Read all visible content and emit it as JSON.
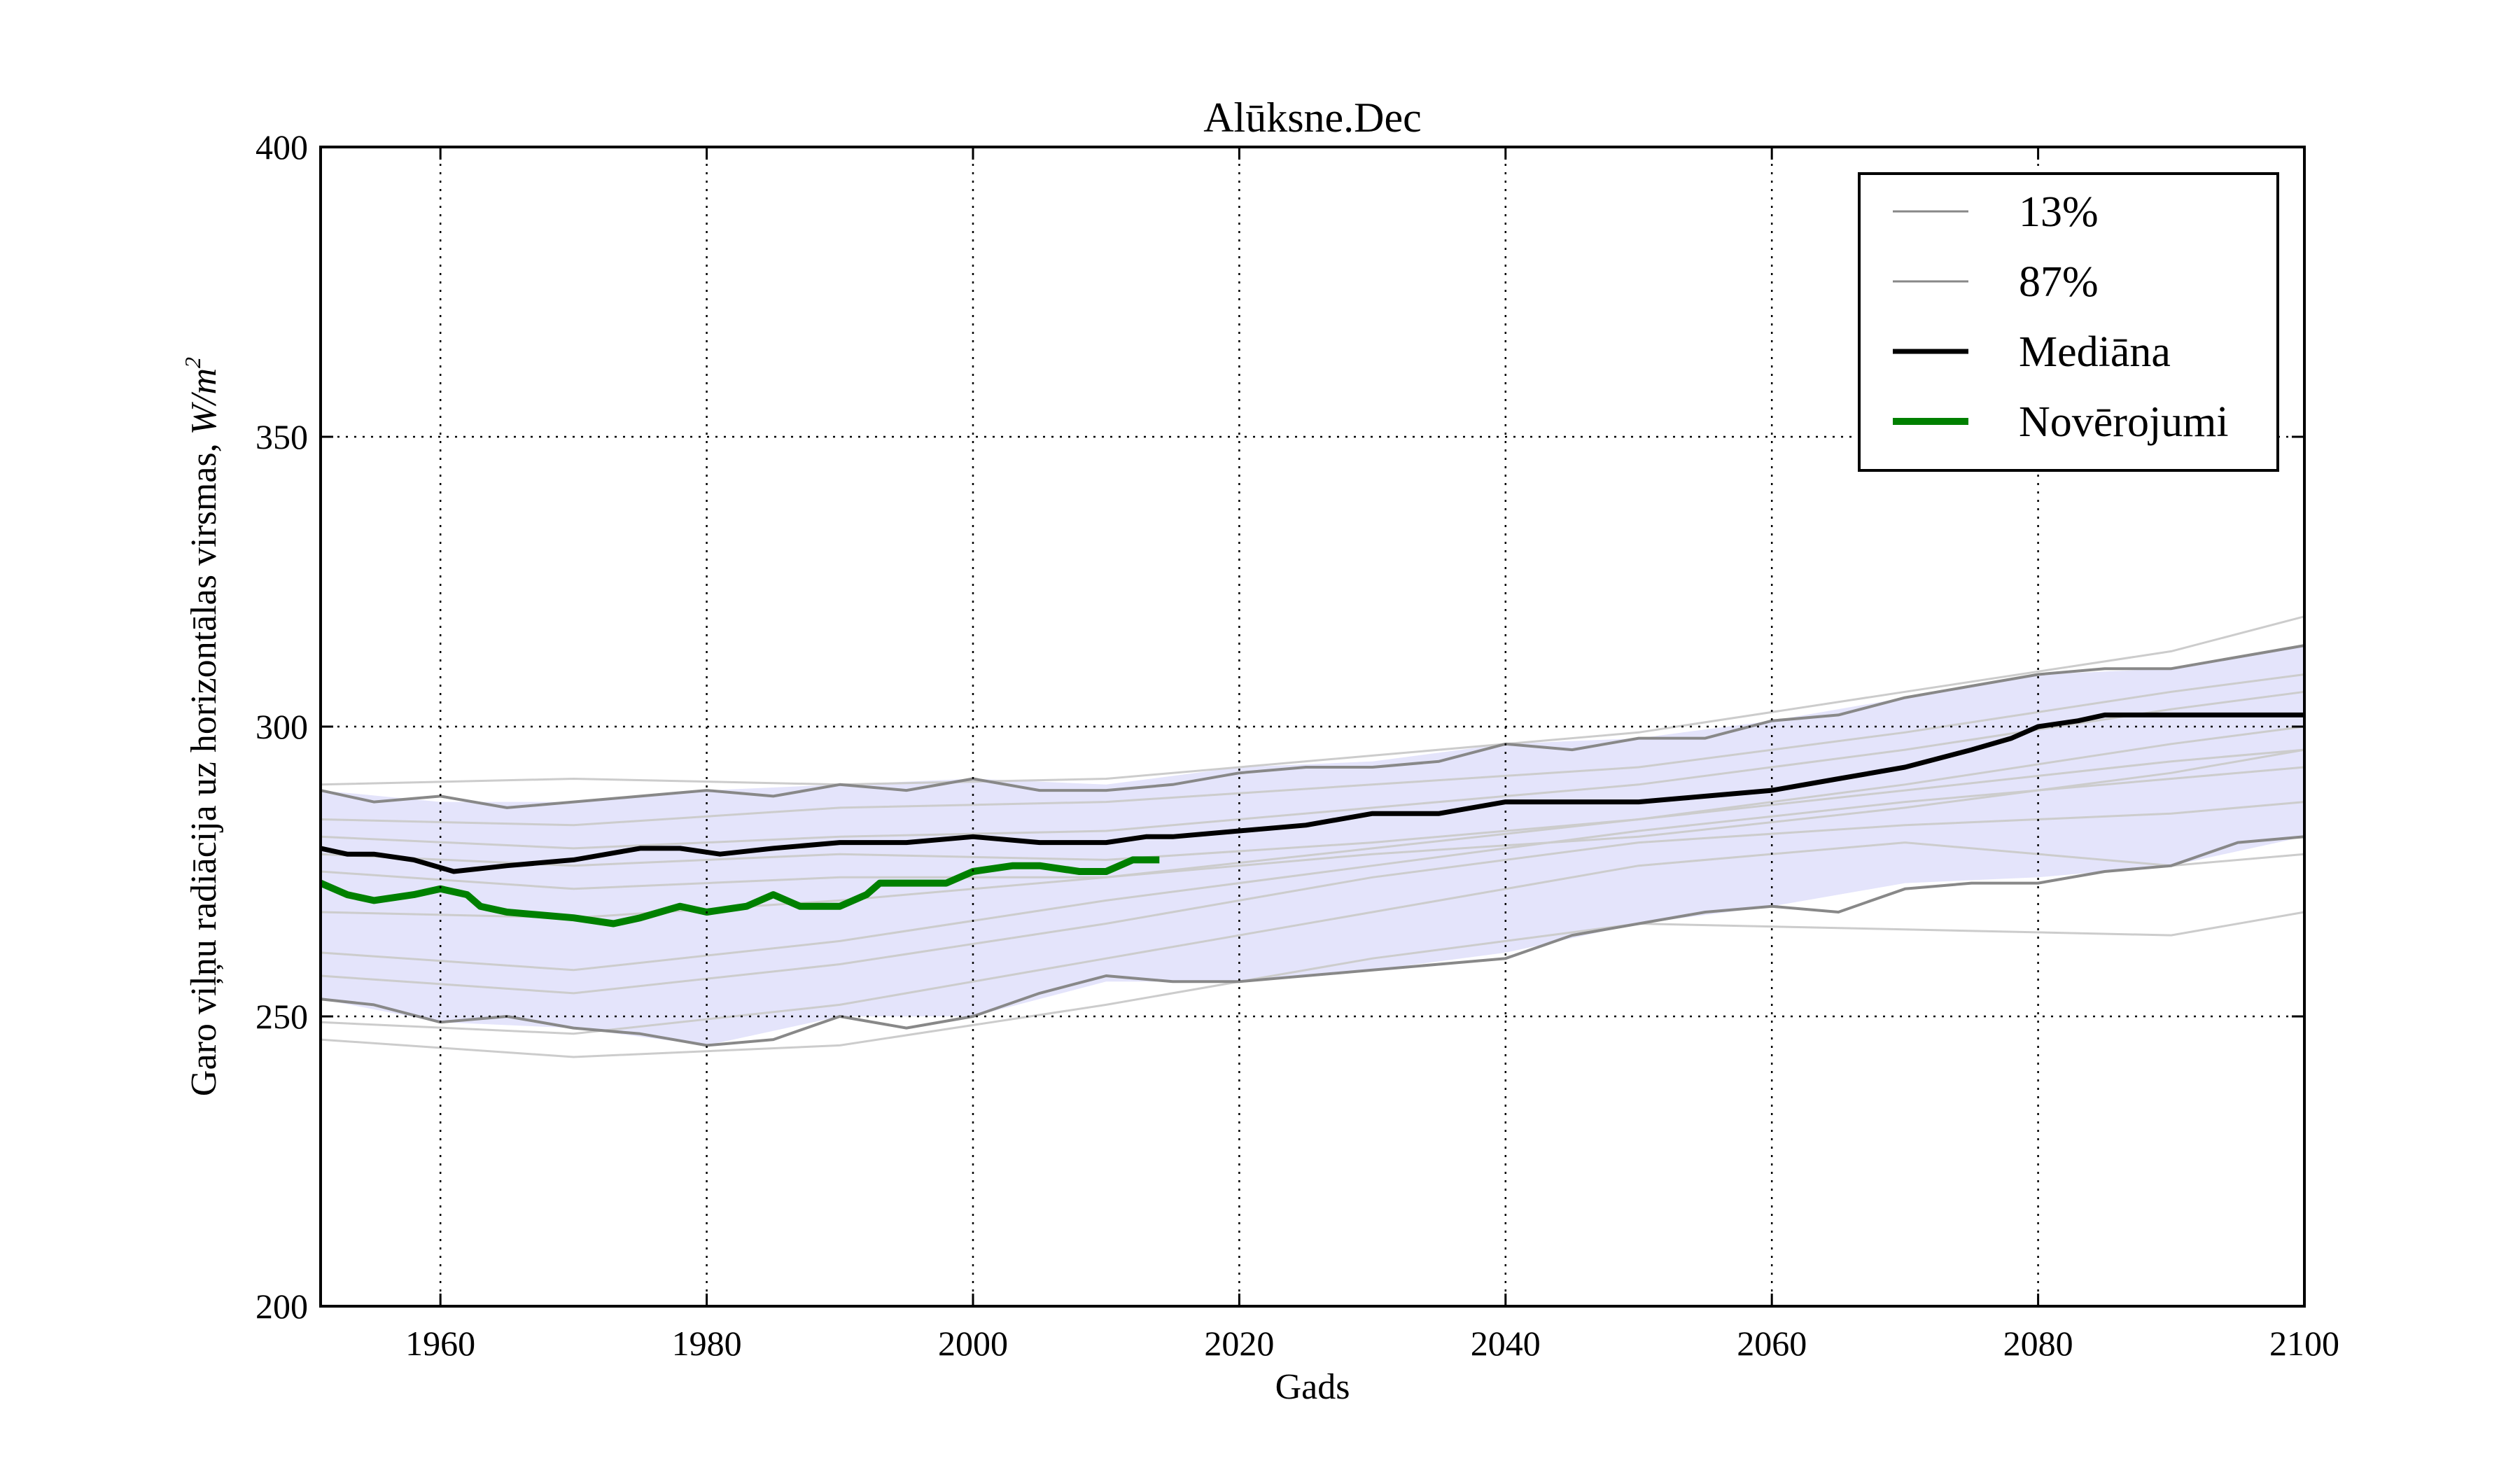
{
  "chart_data": {
    "type": "line",
    "title": "Alūksne.Dec",
    "xlabel": "Gads",
    "ylabel": "Garo viļņu radiācija uz horizontālas virsmas,",
    "ylabel_unit": "W/m",
    "ylabel_unit_exp": "2",
    "xlim": [
      1951,
      2100
    ],
    "ylim": [
      200,
      400
    ],
    "xticks": [
      1960,
      1980,
      2000,
      2020,
      2040,
      2060,
      2080,
      2100
    ],
    "yticks": [
      200,
      250,
      300,
      350,
      400
    ],
    "grid": true,
    "legend_position": "top-right",
    "colors": {
      "band": "#e4e4fb",
      "percentile": "#888888",
      "ensemble": "#cccccc",
      "median": "#000000",
      "observations": "#008000"
    },
    "band": {
      "x": [
        1951,
        1960,
        1970,
        1980,
        1990,
        2000,
        2010,
        2020,
        2030,
        2040,
        2050,
        2060,
        2070,
        2080,
        2090,
        2100
      ],
      "lower": [
        253,
        249,
        248,
        245,
        250,
        250,
        256,
        256,
        258,
        261,
        266,
        269,
        273,
        274,
        276,
        281
      ],
      "upper": [
        289,
        287,
        287,
        289,
        290,
        291,
        290,
        293,
        294,
        297,
        298,
        301,
        305,
        309,
        310,
        314
      ]
    },
    "ensemble": [
      {
        "x": [
          1951,
          1970,
          1990,
          2010,
          2030,
          2050,
          2070,
          2090,
          2100
        ],
        "values": [
          290,
          291,
          290,
          291,
          295,
          299,
          306,
          313,
          319
        ]
      },
      {
        "x": [
          1951,
          1970,
          1990,
          2010,
          2030,
          2050,
          2070,
          2090,
          2100
        ],
        "values": [
          284,
          283,
          286,
          287,
          290,
          293,
          299,
          306,
          309
        ]
      },
      {
        "x": [
          1951,
          1970,
          1990,
          2010,
          2030,
          2050,
          2070,
          2090,
          2100
        ],
        "values": [
          281,
          279,
          281,
          282,
          286,
          290,
          296,
          303,
          306
        ]
      },
      {
        "x": [
          1951,
          1970,
          1990,
          2010,
          2030,
          2050,
          2070,
          2090,
          2100
        ],
        "values": [
          278,
          276,
          278,
          277,
          280,
          284,
          290,
          297,
          300
        ]
      },
      {
        "x": [
          1951,
          1970,
          1990,
          2010,
          2030,
          2050,
          2070,
          2090,
          2100
        ],
        "values": [
          275,
          272,
          274,
          274,
          278,
          281,
          286,
          292,
          296
        ]
      },
      {
        "x": [
          1951,
          1970,
          1990,
          2010,
          2030,
          2050,
          2070,
          2090,
          2100
        ],
        "values": [
          268,
          267,
          270,
          274,
          279,
          284,
          289,
          294,
          296
        ]
      },
      {
        "x": [
          1951,
          1970,
          1990,
          2010,
          2030,
          2050,
          2070,
          2090,
          2100
        ],
        "values": [
          261,
          258,
          263,
          270,
          276,
          282,
          287,
          291,
          293
        ]
      },
      {
        "x": [
          1951,
          1970,
          1990,
          2010,
          2030,
          2050,
          2070,
          2090,
          2100
        ],
        "values": [
          257,
          254,
          259,
          266,
          274,
          280,
          283,
          285,
          287
        ]
      },
      {
        "x": [
          1951,
          1970,
          1990,
          2010,
          2030,
          2050,
          2070,
          2090,
          2100
        ],
        "values": [
          249,
          247,
          252,
          260,
          268,
          276,
          280,
          276,
          278
        ]
      },
      {
        "x": [
          1951,
          1970,
          1990,
          2010,
          2030,
          2050,
          2070,
          2090,
          2100
        ],
        "values": [
          246,
          243,
          245,
          252,
          260,
          266,
          265,
          264,
          268
        ]
      }
    ],
    "series": [
      {
        "name": "13%",
        "x": [
          1951,
          1955,
          1960,
          1965,
          1970,
          1975,
          1980,
          1985,
          1990,
          1995,
          2000,
          2005,
          2010,
          2015,
          2020,
          2025,
          2030,
          2035,
          2040,
          2045,
          2050,
          2055,
          2060,
          2065,
          2070,
          2075,
          2080,
          2085,
          2090,
          2095,
          2100
        ],
        "values": [
          253,
          252,
          249,
          250,
          248,
          247,
          245,
          246,
          250,
          248,
          250,
          254,
          257,
          256,
          256,
          257,
          258,
          259,
          260,
          264,
          266,
          268,
          269,
          268,
          272,
          273,
          273,
          275,
          276,
          280,
          281
        ]
      },
      {
        "name": "87%",
        "x": [
          1951,
          1955,
          1960,
          1965,
          1970,
          1975,
          1980,
          1985,
          1990,
          1995,
          2000,
          2005,
          2010,
          2015,
          2020,
          2025,
          2030,
          2035,
          2040,
          2045,
          2050,
          2055,
          2060,
          2065,
          2070,
          2075,
          2080,
          2085,
          2090,
          2095,
          2100
        ],
        "values": [
          289,
          287,
          288,
          286,
          287,
          288,
          289,
          288,
          290,
          289,
          291,
          289,
          289,
          290,
          292,
          293,
          293,
          294,
          297,
          296,
          298,
          298,
          301,
          302,
          305,
          307,
          309,
          310,
          310,
          312,
          314
        ]
      },
      {
        "name": "Mediāna",
        "x": [
          1951,
          1953,
          1955,
          1958,
          1961,
          1965,
          1970,
          1975,
          1978,
          1981,
          1985,
          1990,
          1995,
          2000,
          2005,
          2010,
          2013,
          2015,
          2020,
          2025,
          2030,
          2035,
          2040,
          2045,
          2050,
          2055,
          2060,
          2065,
          2070,
          2075,
          2078,
          2080,
          2083,
          2085,
          2090,
          2095,
          2100
        ],
        "values": [
          279,
          278,
          278,
          277,
          275,
          276,
          277,
          279,
          279,
          278,
          279,
          280,
          280,
          281,
          280,
          280,
          281,
          281,
          282,
          283,
          285,
          285,
          287,
          287,
          287,
          288,
          289,
          291,
          293,
          296,
          298,
          300,
          301,
          302,
          302,
          302,
          302
        ]
      },
      {
        "name": "Novērojumi",
        "x": [
          1951,
          1953,
          1955,
          1958,
          1960,
          1962,
          1963,
          1965,
          1970,
          1973,
          1975,
          1978,
          1980,
          1983,
          1985,
          1987,
          1990,
          1992,
          1993,
          1995,
          1998,
          2000,
          2003,
          2005,
          2008,
          2010,
          2012,
          2014
        ],
        "values": [
          273,
          271,
          270,
          271,
          272,
          271,
          269,
          268,
          267,
          266,
          267,
          269,
          268,
          269,
          271,
          269,
          269,
          271,
          273,
          273,
          273,
          275,
          276,
          276,
          275,
          275,
          277,
          277
        ]
      }
    ]
  }
}
